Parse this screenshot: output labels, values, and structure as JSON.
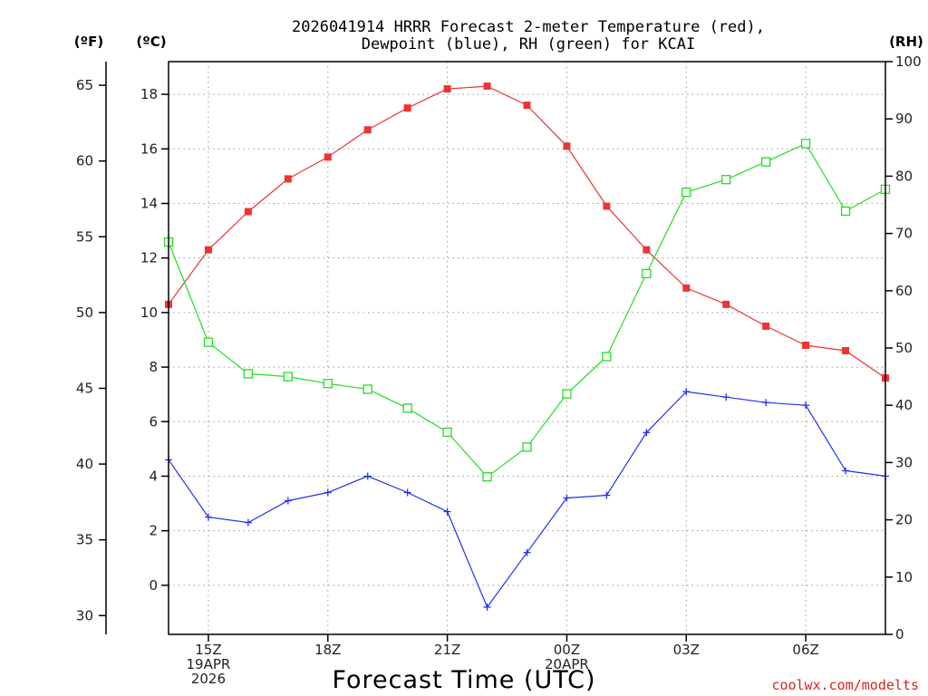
{
  "chart_data": {
    "type": "line",
    "title_line1": "2026041914 HRRR Forecast 2-meter Temperature (red),",
    "title_line2": "Dewpoint (blue), RH (green) for KCAI",
    "xlabel": "Forecast Time (UTC)",
    "credit": "coolwx.com/modelts",
    "units": {
      "fahrenheit": "(ºF)",
      "celsius": "(ºC)",
      "rh": "(RH)"
    },
    "x_hours": [
      14,
      15,
      16,
      17,
      18,
      19,
      20,
      21,
      22,
      23,
      24,
      25,
      26,
      27,
      28,
      29,
      30,
      31,
      32
    ],
    "x_ticks": [
      {
        "hour": 15,
        "lines": [
          "15Z",
          "19APR",
          "2026"
        ]
      },
      {
        "hour": 18,
        "lines": [
          "18Z"
        ]
      },
      {
        "hour": 21,
        "lines": [
          "21Z"
        ]
      },
      {
        "hour": 24,
        "lines": [
          "00Z",
          "20APR"
        ]
      },
      {
        "hour": 27,
        "lines": [
          "03Z"
        ]
      },
      {
        "hour": 30,
        "lines": [
          "06Z"
        ]
      }
    ],
    "xlim": [
      14,
      32
    ],
    "celsius_axis": {
      "ylim": [
        -1.8,
        19.2
      ],
      "ticks": [
        "0",
        "2",
        "4",
        "6",
        "8",
        "10",
        "12",
        "14",
        "16",
        "18"
      ],
      "tick_values": [
        0,
        2,
        4,
        6,
        8,
        10,
        12,
        14,
        16,
        18
      ]
    },
    "fahrenheit_axis": {
      "ticks": [
        "30",
        "35",
        "40",
        "45",
        "50",
        "55",
        "60",
        "65"
      ],
      "tick_values": [
        30,
        35,
        40,
        45,
        50,
        55,
        60,
        65
      ]
    },
    "rh_axis": {
      "ylim": [
        0,
        100
      ],
      "ticks": [
        "0",
        "10",
        "20",
        "30",
        "40",
        "50",
        "60",
        "70",
        "80",
        "90",
        "100"
      ],
      "tick_values": [
        0,
        10,
        20,
        30,
        40,
        50,
        60,
        70,
        80,
        90,
        100
      ]
    },
    "series": [
      {
        "name": "Temperature",
        "color": "#ee3333",
        "marker": "filled-square",
        "axis": "celsius",
        "values": [
          10.3,
          12.3,
          13.7,
          14.9,
          15.7,
          16.7,
          17.5,
          18.2,
          18.3,
          17.6,
          16.1,
          13.9,
          12.3,
          10.9,
          10.3,
          9.5,
          8.8,
          8.6,
          7.6
        ]
      },
      {
        "name": "Dewpoint",
        "color": "#2233ee",
        "marker": "plus",
        "axis": "celsius",
        "values": [
          4.6,
          2.5,
          2.3,
          3.1,
          3.4,
          4.0,
          3.4,
          2.7,
          -0.8,
          1.2,
          3.2,
          3.3,
          5.6,
          7.1,
          6.9,
          6.7,
          6.6,
          4.2,
          4.0
        ]
      },
      {
        "name": "RH",
        "color": "#22dd22",
        "marker": "open-square",
        "axis": "rh",
        "values": [
          68.5,
          51.0,
          45.5,
          45.0,
          43.8,
          42.8,
          39.5,
          35.3,
          27.5,
          32.7,
          42.0,
          48.5,
          63.0,
          77.2,
          79.4,
          82.5,
          85.7,
          73.9,
          77.7
        ]
      }
    ]
  }
}
